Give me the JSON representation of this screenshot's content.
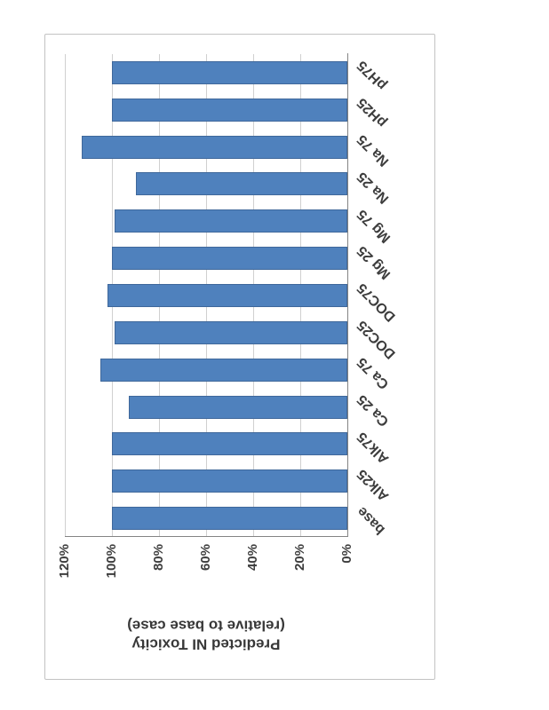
{
  "chart_data": {
    "type": "bar",
    "categories": [
      "base",
      "Alk25",
      "Alk75",
      "Ca 25",
      "Ca 75",
      "DOC25",
      "DOC75",
      "Mg 25",
      "Mg 75",
      "Na 25",
      "Na 75",
      "pH25",
      "pH75"
    ],
    "values": [
      100,
      100,
      100,
      93,
      105,
      99,
      102,
      100,
      99,
      90,
      113,
      100,
      100
    ],
    "value_unit": "%",
    "ylabel_line1": "Predicted NI Toxicity",
    "ylabel_line2": "(relative to base case)",
    "ticks": [
      "0%",
      "20%",
      "40%",
      "60%",
      "80%",
      "100%",
      "120%"
    ],
    "ylim": [
      0,
      120
    ],
    "grid": true,
    "legend": "none",
    "bar_color": "#4f81bd",
    "layout_note": "chart rotated 90 degrees counter-clockwise on the page; bars extend leftward from right baseline"
  }
}
